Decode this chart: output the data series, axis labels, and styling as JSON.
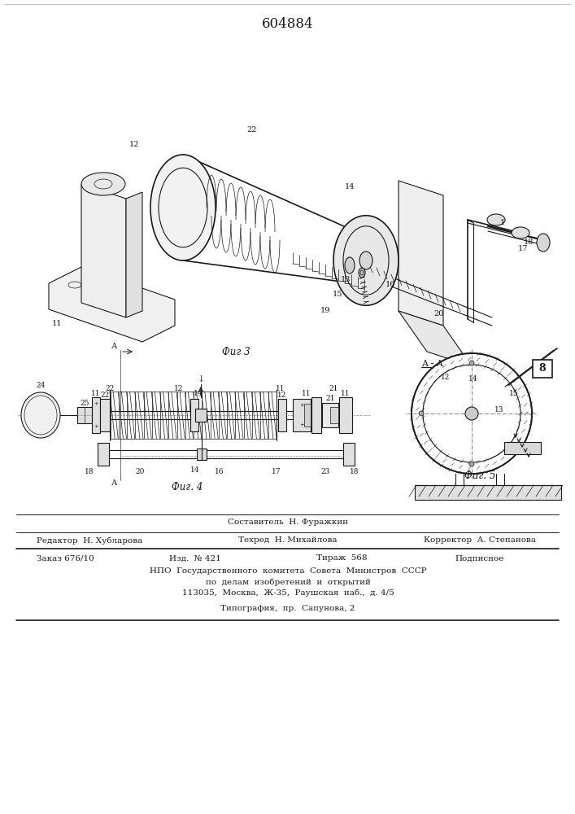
{
  "patent_number": "604884",
  "fig3_caption": "Фиг 3",
  "fig4_caption": "Фиг. 4",
  "fig5_caption": "Фиг. 5",
  "aa_label": "A - A",
  "bg_color": "#ffffff",
  "line_color": "#1a1a1a",
  "footer": {
    "line1": "Составитель  Н. Фуражкин",
    "editor": "Редактор  Н. Хубларова",
    "techred": "Техред  Н. Михайлова",
    "corrector": "Корректор  А. Степанова",
    "order": "Заказ 676/10",
    "izdanie": "Изд.  № 421",
    "tirazh": "Тираж  568",
    "podpisnoe": "Подписное",
    "npo": "НПО  Государственного  комитета  Совета  Министров  СССР",
    "po_delam": "по  делам  изобретений  и  открытий",
    "address": "113035,  Москва,  Ж-35,  Раушская  наб.,  д. 4/5",
    "tipografia": "Типография,  пр.  Сапунова, 2"
  }
}
